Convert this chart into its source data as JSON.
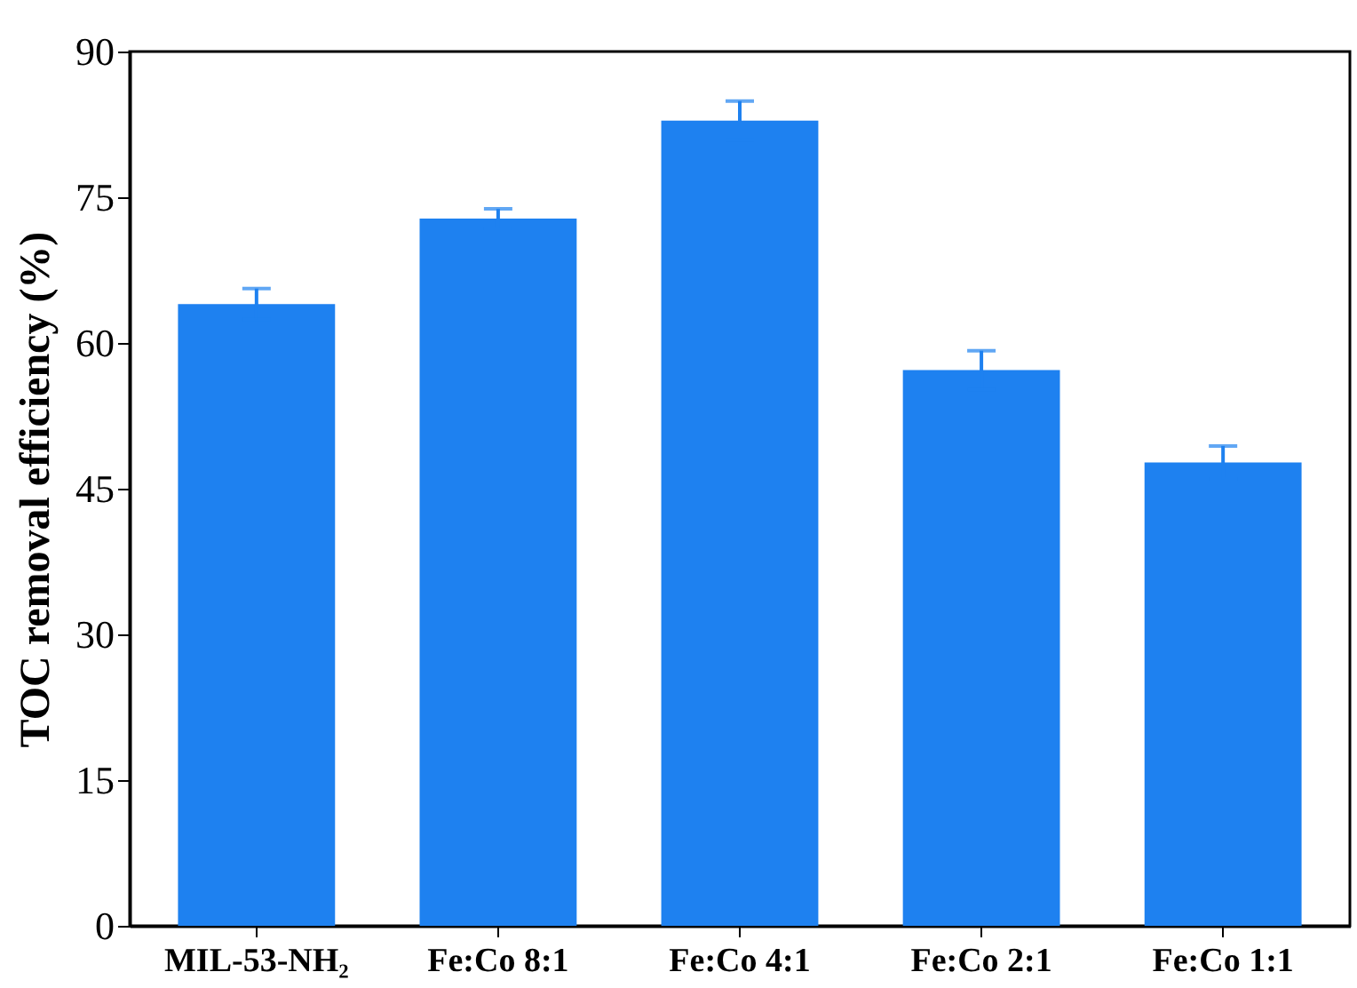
{
  "chart_data": {
    "type": "bar",
    "categories": [
      "MIL-53-NH₂",
      "Fe:Co 8:1",
      "Fe:Co 4:1",
      "Fe:Co 2:1",
      "Fe:Co 1:1"
    ],
    "values": [
      64,
      72.8,
      82.9,
      57.2,
      47.7
    ],
    "errors": [
      1.6,
      1,
      2,
      2,
      1.7
    ],
    "color": "#1e81f0",
    "ylabel": "TOC removal efficiency (%)",
    "ylim": [
      0,
      90
    ],
    "yticks": [
      0,
      15,
      30,
      45,
      60,
      75,
      90
    ],
    "grid": false
  }
}
